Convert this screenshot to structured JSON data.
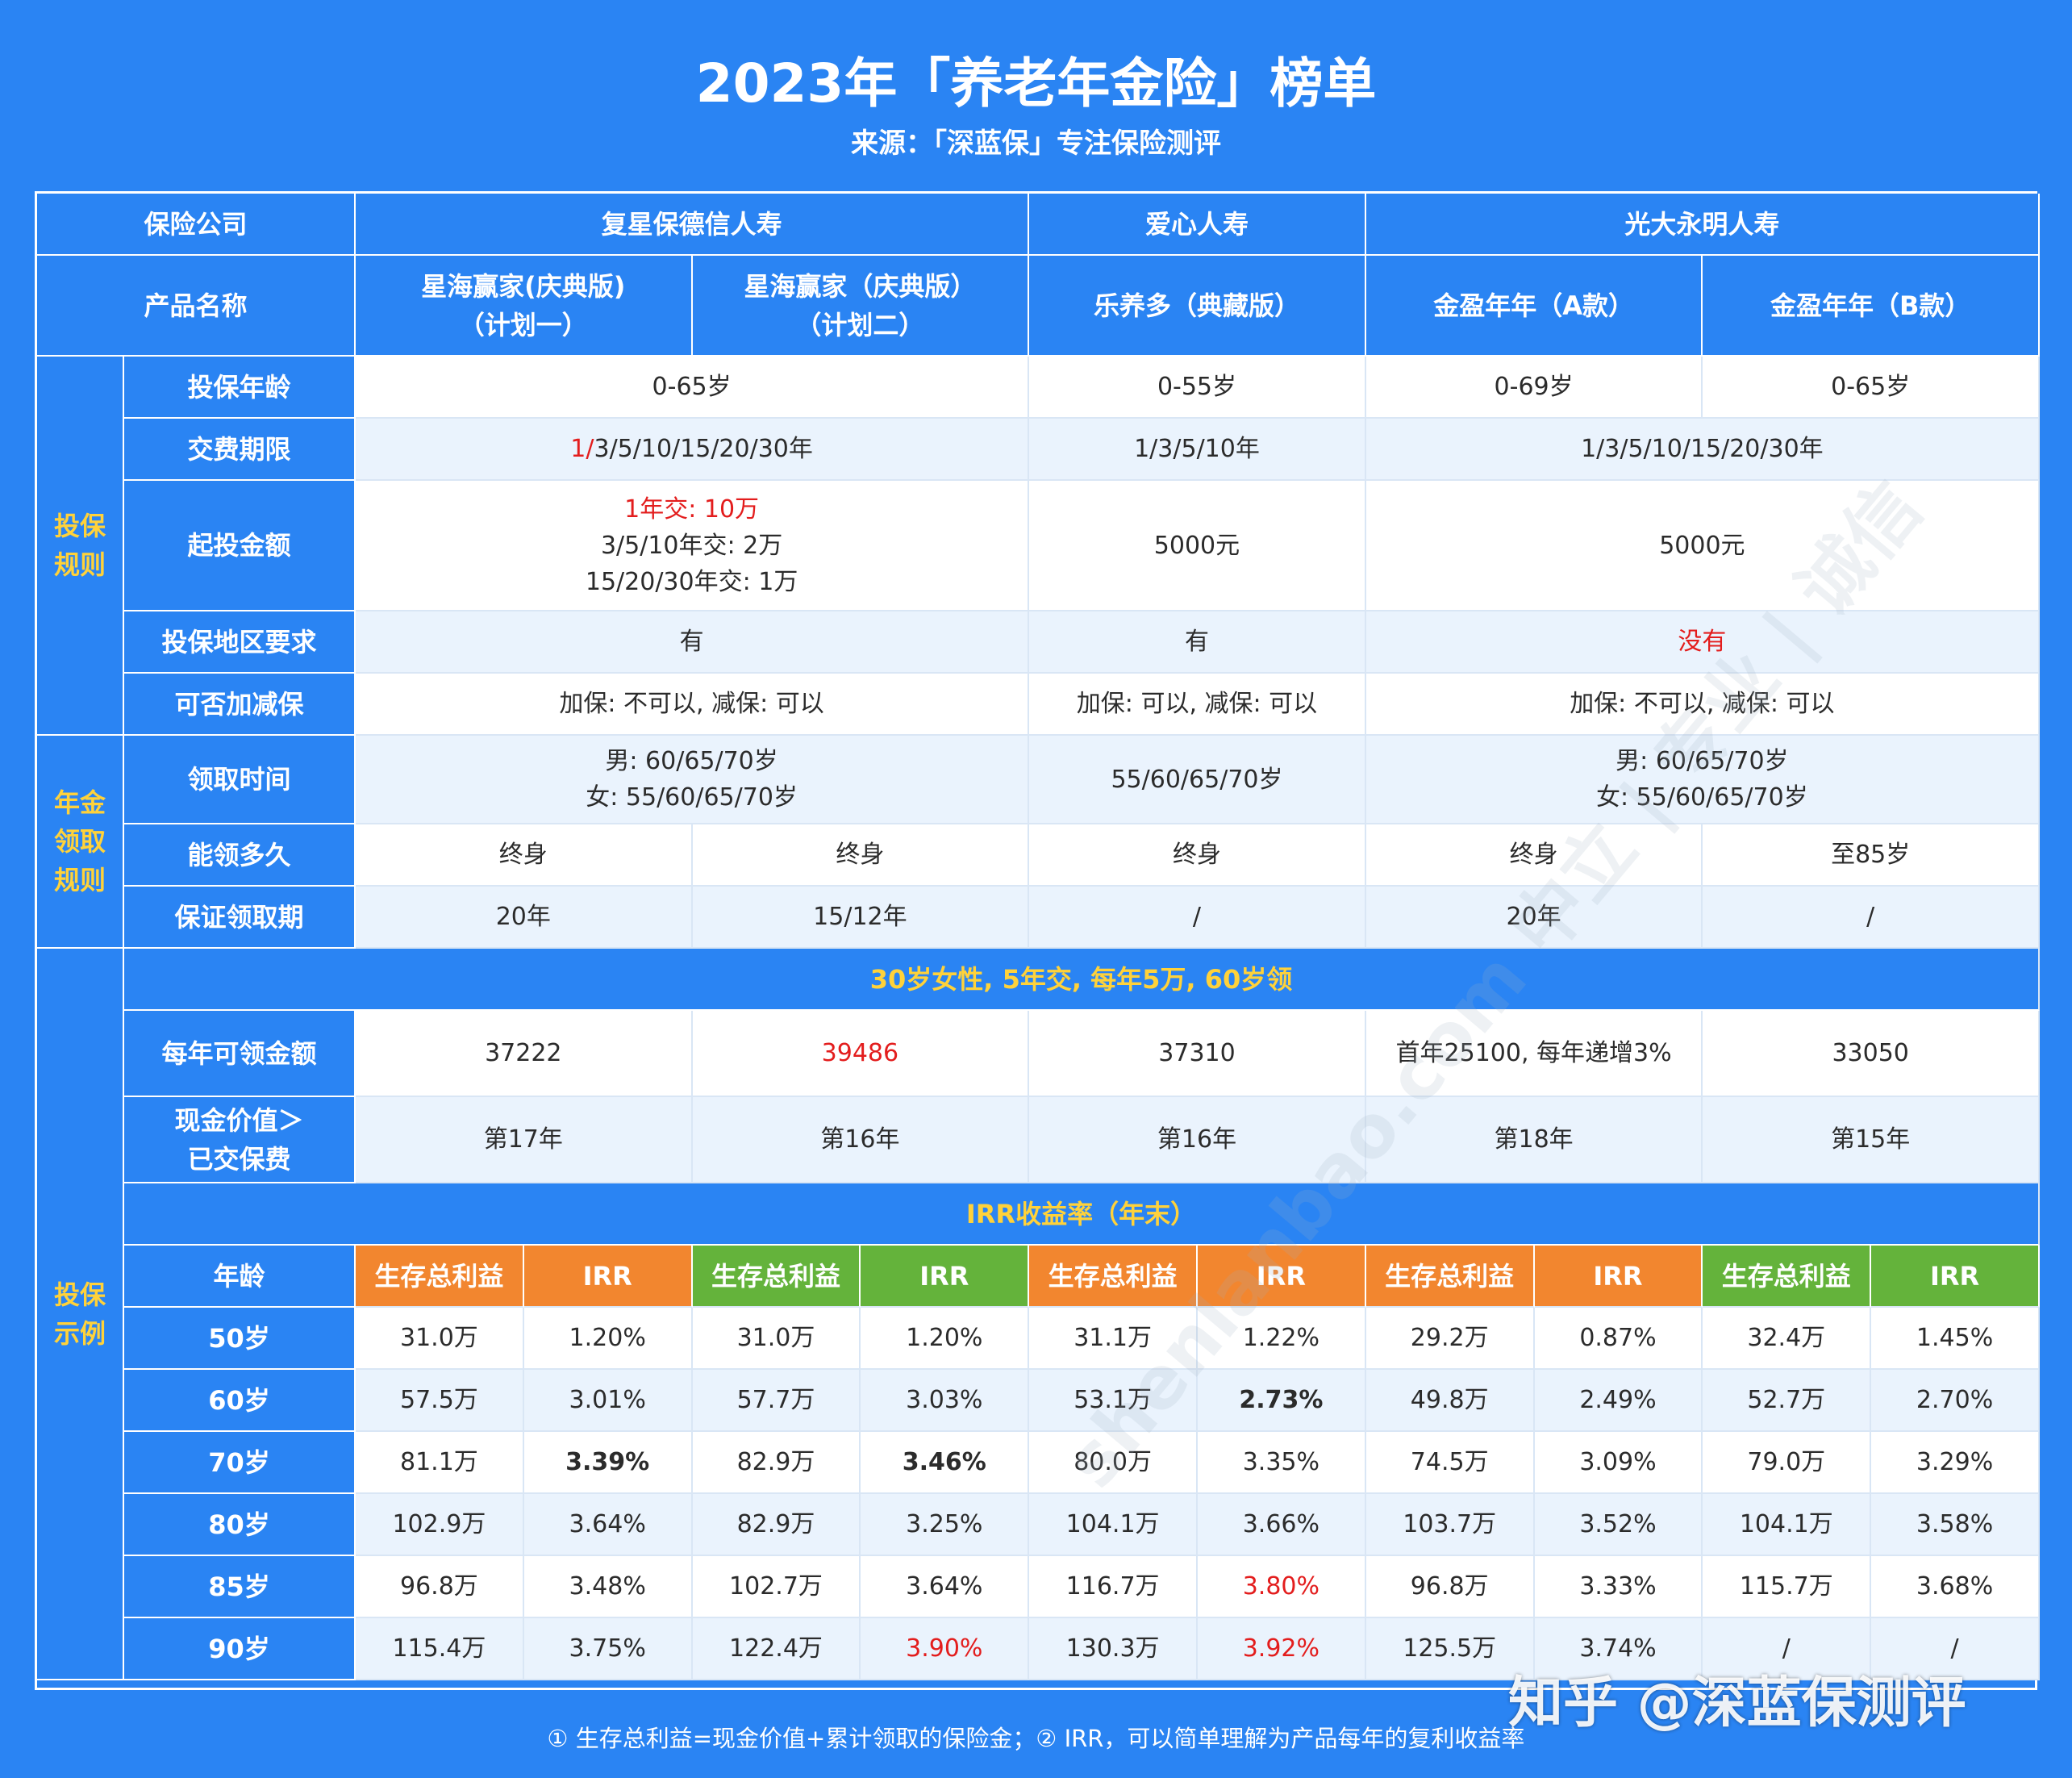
{
  "header": {
    "title": "2023年「养老年金险」榜单",
    "subtitle": "来源：「深蓝保」专注保险测评"
  },
  "table": {
    "company_label": "保险公司",
    "product_label": "产品名称",
    "companies": [
      "复星保德信人寿",
      "爱心人寿",
      "光大永明人寿"
    ],
    "products": [
      "星海赢家(庆典版)\n（计划一）",
      "星海赢家（庆典版）\n（计划二）",
      "乐养多（典藏版）",
      "金盈年年（A款）",
      "金盈年年（B款）"
    ],
    "groups": {
      "rules": "投保\n规则",
      "annuity": "年金\n领取\n规则",
      "example": "投保\n示例"
    },
    "row_labels": {
      "age": "投保年龄",
      "payment": "交费期限",
      "min": "起投金额",
      "region": "投保地区要求",
      "adjust": "可否加减保",
      "claim_time": "领取时间",
      "duration": "能领多久",
      "guarantee": "保证领取期",
      "annual": "每年可领金额",
      "cash_value": "现金价值＞\n已交保费",
      "age_col": "年龄"
    },
    "age": [
      "0-65岁",
      "0-55岁",
      "0-69岁",
      "0-65岁"
    ],
    "payment": {
      "fosun_red": "1/",
      "fosun_rest": "3/5/10/15/20/30年",
      "aixin": "1/3/5/10年",
      "guangda": "1/3/5/10/15/20/30年"
    },
    "min_amount": {
      "fosun_line1": "1年交: 10万",
      "fosun_line2": "3/5/10年交: 2万",
      "fosun_line3": "15/20/30年交: 1万",
      "aixin": "5000元",
      "guangda": "5000元"
    },
    "region": [
      "有",
      "有",
      "没有"
    ],
    "adjust": [
      "加保: 不可以, 减保: 可以",
      "加保: 可以, 减保: 可以",
      "加保: 不可以, 减保: 可以"
    ],
    "claim_time": [
      "男: 60/65/70岁\n女: 55/60/65/70岁",
      "55/60/65/70岁",
      "男: 60/65/70岁\n女: 55/60/65/70岁"
    ],
    "duration": [
      "终身",
      "终身",
      "终身",
      "终身",
      "至85岁"
    ],
    "guarantee": [
      "20年",
      "15/12年",
      "/",
      "20年",
      "/"
    ],
    "example_banner": "30岁女性, 5年交, 每年5万, 60岁领",
    "annual": [
      "37222",
      "39486",
      "37310",
      "首年25100, 每年递增3%",
      "33050"
    ],
    "cash_value": [
      "第17年",
      "第16年",
      "第16年",
      "第18年",
      "第15年"
    ],
    "irr_banner": "IRR收益率（年末）",
    "col_total": "生存总利益",
    "col_irr": "IRR",
    "rows": [
      {
        "age": "50岁",
        "values": [
          "31.0万",
          "1.20%",
          "31.0万",
          "1.20%",
          "31.1万",
          "1.22%",
          "29.2万",
          "0.87%",
          "32.4万",
          "1.45%"
        ]
      },
      {
        "age": "60岁",
        "values": [
          "57.5万",
          "3.01%",
          "57.7万",
          "3.03%",
          "53.1万",
          "2.73%",
          "49.8万",
          "2.49%",
          "52.7万",
          "2.70%"
        ]
      },
      {
        "age": "70岁",
        "values": [
          "81.1万",
          "3.39%",
          "82.9万",
          "3.46%",
          "80.0万",
          "3.35%",
          "74.5万",
          "3.09%",
          "79.0万",
          "3.29%"
        ]
      },
      {
        "age": "80岁",
        "values": [
          "102.9万",
          "3.64%",
          "82.9万",
          "3.25%",
          "104.1万",
          "3.66%",
          "103.7万",
          "3.52%",
          "104.1万",
          "3.58%"
        ]
      },
      {
        "age": "85岁",
        "values": [
          "96.8万",
          "3.48%",
          "102.7万",
          "3.64%",
          "116.7万",
          "3.80%",
          "96.8万",
          "3.33%",
          "115.7万",
          "3.68%"
        ]
      },
      {
        "age": "90岁",
        "values": [
          "115.4万",
          "3.75%",
          "122.4万",
          "3.90%",
          "130.3万",
          "3.92%",
          "125.5万",
          "3.74%",
          "/",
          "/"
        ]
      }
    ]
  },
  "footnote": "① 生存总利益=现金价值+累计领取的保险金；② IRR，可以简单理解为产品每年的复利收益率",
  "watermark": "知乎 @深蓝保测评",
  "background_watermark": "shenlanbao.com  中立 | 专业 | 诚信",
  "colors": {
    "primary_blue": "#2a84f3",
    "light_row": "#eaf3fd",
    "orange": "#f2862f",
    "green": "#64b33b",
    "highlight_yellow": "#ffd23a",
    "highlight_red": "#e31d1d"
  }
}
